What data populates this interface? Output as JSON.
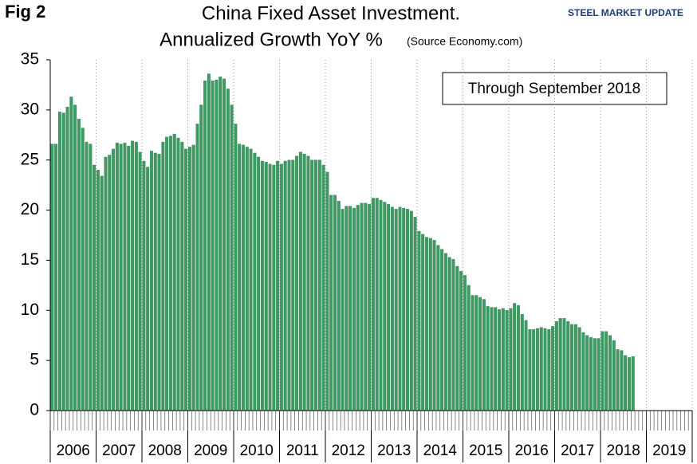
{
  "chart_data": {
    "type": "bar",
    "label": "Fig 2",
    "title": "China Fixed Asset Investment.",
    "subtitle": "Annualized Growth YoY %",
    "source": "(Source Economy.com)",
    "annotation": "Through September 2018",
    "logo": "STEEL MARKET UPDATE",
    "color": "#3d9a62",
    "ylim": [
      0,
      35
    ],
    "yticks": [
      0,
      5,
      10,
      15,
      20,
      25,
      30,
      35
    ],
    "year_labels": [
      "2006",
      "2007",
      "2008",
      "2009",
      "2010",
      "2011",
      "2012",
      "2013",
      "2014",
      "2015",
      "2016",
      "2017",
      "2018",
      "2019"
    ],
    "categories": [
      null,
      null,
      null,
      null,
      null,
      null,
      null,
      null,
      null,
      null,
      null,
      null,
      null,
      null,
      null,
      null,
      null,
      null,
      null,
      null,
      null,
      null,
      null,
      null,
      null,
      null,
      null,
      null,
      null,
      null,
      null,
      null,
      null,
      null,
      null,
      null,
      null,
      null,
      null,
      null,
      null,
      null,
      null,
      null,
      null,
      null,
      null,
      null,
      null,
      null,
      null,
      null,
      null,
      null,
      null,
      null,
      null,
      null,
      null,
      null,
      null,
      null,
      null,
      null,
      null,
      null,
      null,
      null,
      null,
      null,
      null,
      null,
      null,
      null,
      null,
      null,
      null,
      null,
      null,
      null,
      null,
      null,
      null,
      null,
      null,
      null,
      null,
      null,
      null,
      null,
      null,
      null,
      null,
      null,
      null,
      null,
      null,
      null,
      null,
      null,
      null,
      null,
      null,
      null,
      null,
      null,
      null,
      null,
      null,
      null,
      null,
      null,
      null,
      null,
      null,
      null,
      null,
      null,
      null,
      null,
      null,
      null,
      null,
      null,
      null,
      null,
      null,
      null,
      null,
      null,
      null,
      null,
      null,
      null,
      null,
      null,
      null,
      null,
      null,
      null,
      null,
      null,
      null,
      null,
      null,
      null,
      null,
      null,
      null,
      null,
      null,
      null,
      null,
      null,
      null,
      null,
      null,
      null,
      null,
      null,
      null,
      null,
      null,
      null,
      null,
      null,
      null,
      null
    ],
    "values": [
      26.6,
      26.6,
      29.8,
      29.7,
      30.3,
      31.3,
      30.5,
      29.1,
      28.2,
      26.8,
      26.6,
      24.5,
      24.0,
      23.4,
      25.3,
      25.5,
      26.1,
      26.7,
      26.6,
      26.7,
      26.4,
      26.9,
      26.8,
      25.8,
      24.9,
      24.3,
      25.9,
      25.7,
      25.6,
      26.8,
      27.3,
      27.4,
      27.6,
      27.2,
      26.8,
      26.1,
      26.3,
      26.5,
      28.6,
      30.5,
      32.9,
      33.6,
      32.9,
      33.0,
      33.3,
      33.1,
      32.1,
      30.5,
      28.6,
      26.6,
      26.5,
      26.3,
      26.1,
      25.7,
      25.3,
      24.9,
      24.8,
      24.6,
      24.5,
      24.9,
      24.6,
      24.9,
      25.0,
      25.0,
      25.4,
      25.8,
      25.6,
      25.4,
      25.0,
      25.0,
      25.0,
      24.5,
      23.8,
      21.5,
      21.5,
      20.9,
      20.1,
      20.4,
      20.4,
      20.2,
      20.5,
      20.7,
      20.7,
      20.6,
      21.2,
      21.2,
      21.0,
      20.8,
      20.6,
      20.3,
      20.1,
      20.3,
      20.2,
      20.1,
      19.9,
      19.3,
      17.9,
      17.6,
      17.3,
      17.2,
      17.0,
      16.5,
      16.1,
      15.7,
      15.3,
      15.1,
      14.4,
      13.9,
      13.5,
      12.5,
      11.5,
      11.5,
      11.3,
      11.1,
      10.4,
      10.3,
      10.3,
      10.1,
      10.2,
      10.0,
      10.2,
      10.7,
      10.5,
      9.6,
      9.0,
      8.1,
      8.1,
      8.2,
      8.3,
      8.2,
      8.1,
      8.4,
      8.9,
      9.2,
      9.2,
      8.9,
      8.6,
      8.6,
      8.3,
      7.8,
      7.5,
      7.3,
      7.2,
      7.2,
      7.9,
      7.9,
      7.5,
      7.0,
      6.1,
      6.0,
      5.5,
      5.3,
      5.4,
      null,
      null,
      null,
      null,
      null,
      null,
      null,
      null,
      null,
      null,
      null,
      null,
      null,
      null,
      null
    ]
  }
}
